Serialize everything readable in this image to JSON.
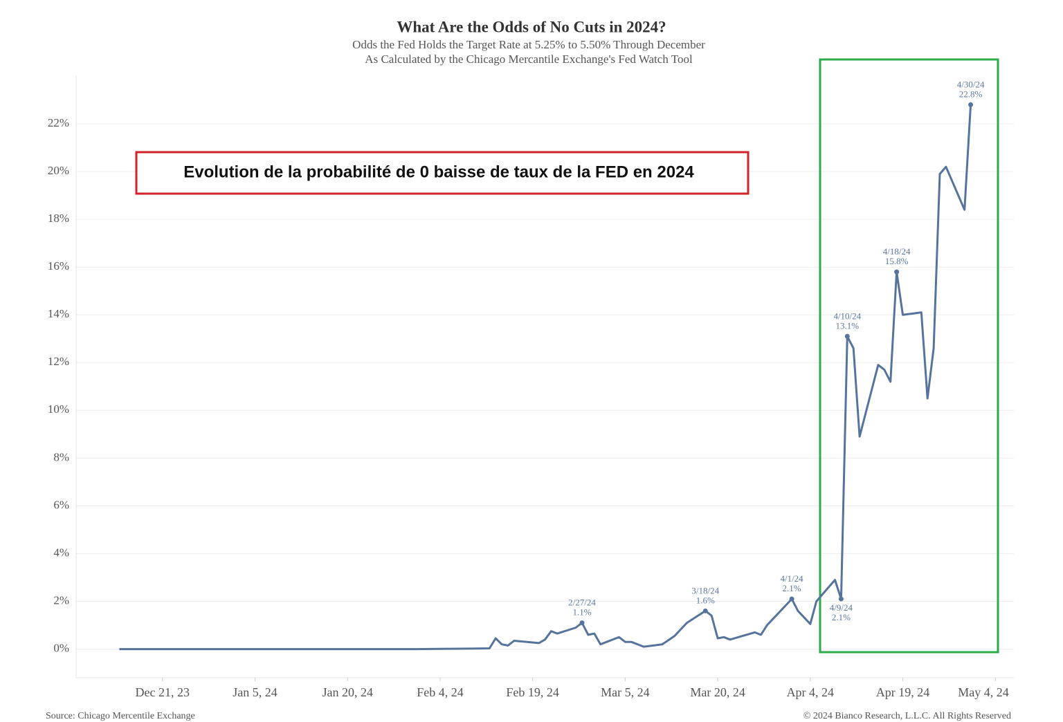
{
  "chart_data": {
    "type": "line",
    "title": "What Are the Odds of No Cuts in 2024?",
    "subtitle": [
      "Odds the Fed Holds the Target Rate at 5.25% to 5.50% Through December",
      "As Calculated by the Chicago Mercantile Exchange's Fed Watch Tool"
    ],
    "callout": "Evolution de la probabilité de 0 baisse de taux de la FED en 2024",
    "source": "Source: Chicago Mercentile Exchange",
    "copyright": "© 2024 Bianco Research, L.L.C. All Rights Reserved",
    "color": "#56739c",
    "grid": true,
    "x": [
      "2023-12-14",
      "2024-01-02",
      "2024-01-31",
      "2024-02-09",
      "2024-02-12",
      "2024-02-13",
      "2024-02-14",
      "2024-02-15",
      "2024-02-16",
      "2024-02-20",
      "2024-02-21",
      "2024-02-22",
      "2024-02-23",
      "2024-02-26",
      "2024-02-27",
      "2024-02-28",
      "2024-02-29",
      "2024-03-01",
      "2024-03-04",
      "2024-03-05",
      "2024-03-06",
      "2024-03-08",
      "2024-03-11",
      "2024-03-13",
      "2024-03-15",
      "2024-03-18",
      "2024-03-19",
      "2024-03-20",
      "2024-03-21",
      "2024-03-22",
      "2024-03-26",
      "2024-03-27",
      "2024-03-28",
      "2024-04-01",
      "2024-04-02",
      "2024-04-04",
      "2024-04-05",
      "2024-04-08",
      "2024-04-09",
      "2024-04-10",
      "2024-04-11",
      "2024-04-12",
      "2024-04-15",
      "2024-04-16",
      "2024-04-17",
      "2024-04-18",
      "2024-04-19",
      "2024-04-22",
      "2024-04-23",
      "2024-04-24",
      "2024-04-25",
      "2024-04-26",
      "2024-04-29",
      "2024-04-30"
    ],
    "values": [
      0,
      0,
      0,
      0.02,
      0.03,
      0.45,
      0.2,
      0.15,
      0.35,
      0.25,
      0.4,
      0.75,
      0.65,
      0.9,
      1.1,
      0.6,
      0.65,
      0.2,
      0.5,
      0.3,
      0.3,
      0.1,
      0.2,
      0.55,
      1.1,
      1.6,
      1.4,
      0.45,
      0.5,
      0.4,
      0.7,
      0.6,
      1.0,
      2.1,
      1.6,
      1.05,
      2.0,
      2.9,
      2.1,
      13.1,
      12.6,
      8.9,
      11.9,
      11.7,
      11.2,
      15.8,
      14.0,
      14.1,
      10.5,
      12.6,
      19.9,
      20.2,
      18.4,
      22.8
    ],
    "annotations": [
      {
        "x": "2024-02-27",
        "y": 1.1,
        "date_label": "2/27/24",
        "value_label": "1.1%",
        "position": "above"
      },
      {
        "x": "2024-03-18",
        "y": 1.6,
        "date_label": "3/18/24",
        "value_label": "1.6%",
        "position": "above"
      },
      {
        "x": "2024-04-01",
        "y": 2.1,
        "date_label": "4/1/24",
        "value_label": "2.1%",
        "position": "above"
      },
      {
        "x": "2024-04-09",
        "y": 2.1,
        "date_label": "4/9/24",
        "value_label": "2.1%",
        "position": "below"
      },
      {
        "x": "2024-04-10",
        "y": 13.1,
        "date_label": "4/10/24",
        "value_label": "13.1%",
        "position": "above"
      },
      {
        "x": "2024-04-18",
        "y": 15.8,
        "date_label": "4/18/24",
        "value_label": "15.8%",
        "position": "above"
      },
      {
        "x": "2024-04-30",
        "y": 22.8,
        "date_label": "4/30/24",
        "value_label": "22.8%",
        "position": "above"
      }
    ],
    "xlim": [
      "2023-12-07",
      "2024-05-07"
    ],
    "xticks": [
      {
        "value": "2023-12-21",
        "label": "Dec 21, 23"
      },
      {
        "value": "2024-01-05",
        "label": "Jan 5, 24"
      },
      {
        "value": "2024-01-20",
        "label": "Jan 20, 24"
      },
      {
        "value": "2024-02-04",
        "label": "Feb 4, 24"
      },
      {
        "value": "2024-02-19",
        "label": "Feb 19, 24"
      },
      {
        "value": "2024-03-05",
        "label": "Mar 5, 24"
      },
      {
        "value": "2024-03-20",
        "label": "Mar 20, 24"
      },
      {
        "value": "2024-04-04",
        "label": "Apr 4, 24"
      },
      {
        "value": "2024-04-19",
        "label": "Apr 19, 24"
      },
      {
        "value": "2024-05-04",
        "label": "May 4, 24"
      }
    ],
    "ylim": [
      -1.2,
      24
    ],
    "yticks": [
      {
        "value": 0,
        "label": "0%"
      },
      {
        "value": 2,
        "label": "2%"
      },
      {
        "value": 4,
        "label": "4%"
      },
      {
        "value": 6,
        "label": "6%"
      },
      {
        "value": 8,
        "label": "8%"
      },
      {
        "value": 10,
        "label": "10%"
      },
      {
        "value": 12,
        "label": "12%"
      },
      {
        "value": 14,
        "label": "14%"
      },
      {
        "value": 16,
        "label": "16%"
      },
      {
        "value": 18,
        "label": "18%"
      },
      {
        "value": 20,
        "label": "20%"
      },
      {
        "value": 22,
        "label": "22%"
      }
    ]
  }
}
